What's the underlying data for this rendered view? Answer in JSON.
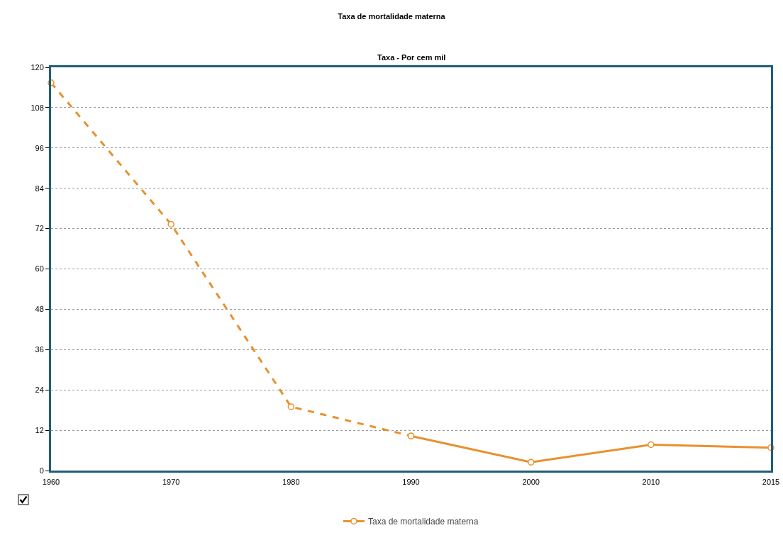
{
  "chart_data": {
    "type": "line",
    "title": "Taxa de mortalidade materna",
    "subtitle": "Taxa - Por cem mil",
    "categories": [
      "1960",
      "1970",
      "1980",
      "1990",
      "2000",
      "2010",
      "2015"
    ],
    "series": [
      {
        "color": "#e8912e",
        "line_style": "dashed",
        "values": [
          115.4,
          73.3,
          19.0,
          10.3,
          null,
          null,
          null
        ]
      },
      {
        "name": "Taxa de mortalidade materna",
        "color": "#e8912e",
        "line_style": "solid",
        "values": [
          null,
          null,
          null,
          10.3,
          2.5,
          7.7,
          6.8
        ]
      }
    ],
    "ylim": [
      0,
      120
    ],
    "yticks": [
      0,
      12,
      24,
      36,
      48,
      60,
      72,
      84,
      96,
      108,
      120
    ],
    "grid": "y",
    "legend": "bottom",
    "marker": "circle"
  }
}
